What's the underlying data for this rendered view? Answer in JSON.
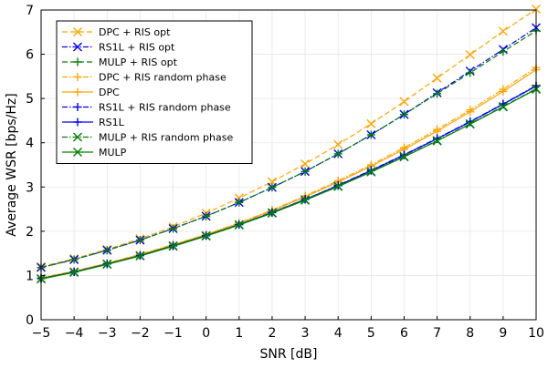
{
  "chart_data": {
    "type": "line",
    "title": "",
    "xlabel": "SNR [dB]",
    "ylabel": "Average WSR [bps/Hz]",
    "xlim": [
      -5,
      10
    ],
    "ylim": [
      0,
      7
    ],
    "grid": true,
    "legend_position": "top-left",
    "x": [
      -5,
      -4,
      -3,
      -2,
      -1,
      0,
      1,
      2,
      3,
      4,
      5,
      6,
      7,
      8,
      9,
      10
    ],
    "x_tick_labels": [
      "−5",
      "−4",
      "−3",
      "−2",
      "−1",
      "0",
      "1",
      "2",
      "3",
      "4",
      "5",
      "6",
      "7",
      "8",
      "9",
      "10"
    ],
    "y_ticks": [
      0,
      1,
      2,
      3,
      4,
      5,
      6,
      7
    ],
    "series": [
      {
        "name": "DPC + RIS opt",
        "color": "#ffa500",
        "dash": "dashed",
        "marker": "x",
        "values": [
          1.2,
          1.38,
          1.59,
          1.83,
          2.1,
          2.41,
          2.75,
          3.12,
          3.52,
          3.96,
          4.43,
          4.93,
          5.46,
          5.99,
          6.52,
          7.02
        ]
      },
      {
        "name": "RS1L + RIS opt",
        "color": "#0000ff",
        "dash": "dashdot",
        "marker": "x",
        "values": [
          1.18,
          1.36,
          1.57,
          1.8,
          2.06,
          2.34,
          2.65,
          2.99,
          3.35,
          3.75,
          4.18,
          4.64,
          5.13,
          5.62,
          6.11,
          6.6
        ]
      },
      {
        "name": "MULP + RIS opt",
        "color": "#008000",
        "dash": "dashed",
        "marker": "plus",
        "values": [
          1.18,
          1.36,
          1.57,
          1.8,
          2.06,
          2.34,
          2.65,
          2.99,
          3.35,
          3.75,
          4.18,
          4.64,
          5.11,
          5.58,
          6.06,
          6.53
        ]
      },
      {
        "name": "DPC + RIS random phase",
        "color": "#ffa500",
        "dash": "dashdot",
        "marker": "plus",
        "values": [
          0.95,
          1.1,
          1.28,
          1.48,
          1.7,
          1.93,
          2.19,
          2.48,
          2.8,
          3.14,
          3.5,
          3.89,
          4.3,
          4.74,
          5.21,
          5.7
        ]
      },
      {
        "name": "DPC",
        "color": "#ffa500",
        "dash": "solid",
        "marker": "plus",
        "values": [
          0.94,
          1.09,
          1.27,
          1.47,
          1.69,
          1.92,
          2.18,
          2.46,
          2.78,
          3.11,
          3.47,
          3.85,
          4.26,
          4.7,
          5.16,
          5.65
        ]
      },
      {
        "name": "RS1L + RIS random phase",
        "color": "#0000ff",
        "dash": "dashdot",
        "marker": "plus",
        "values": [
          0.93,
          1.08,
          1.26,
          1.45,
          1.67,
          1.9,
          2.15,
          2.43,
          2.72,
          3.04,
          3.38,
          3.73,
          4.1,
          4.48,
          4.88,
          5.29
        ]
      },
      {
        "name": "RS1L",
        "color": "#0000ff",
        "dash": "solid",
        "marker": "plus",
        "values": [
          0.93,
          1.08,
          1.26,
          1.45,
          1.67,
          1.9,
          2.15,
          2.42,
          2.72,
          3.03,
          3.37,
          3.72,
          4.09,
          4.47,
          4.87,
          5.28
        ]
      },
      {
        "name": "MULP + RIS random phase",
        "color": "#008000",
        "dash": "dashdot",
        "marker": "x",
        "values": [
          0.93,
          1.08,
          1.26,
          1.45,
          1.67,
          1.9,
          2.15,
          2.42,
          2.71,
          3.02,
          3.35,
          3.69,
          4.05,
          4.43,
          4.82,
          5.22
        ]
      },
      {
        "name": "MULP",
        "color": "#008000",
        "dash": "solid",
        "marker": "x",
        "values": [
          0.92,
          1.07,
          1.25,
          1.44,
          1.66,
          1.89,
          2.14,
          2.41,
          2.7,
          3.01,
          3.34,
          3.68,
          4.04,
          4.42,
          4.81,
          5.21
        ]
      }
    ]
  }
}
